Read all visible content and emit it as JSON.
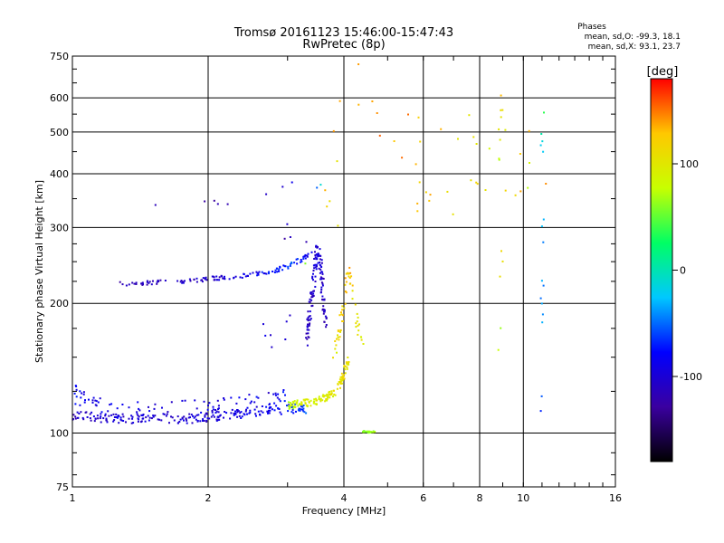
{
  "chart_data": {
    "type": "scatter",
    "title": "Tromsø 20161123 15:46:00-15:47:43",
    "subtitle": "RwPretec (8p)",
    "xlabel": "Frequency [MHz]",
    "ylabel": "Stationary phase Virtual Height [km]",
    "x_scale": "log",
    "y_scale": "log",
    "xlim": [
      1,
      16
    ],
    "ylim": [
      75,
      750
    ],
    "x_ticks": [
      1,
      2,
      4,
      6,
      8,
      10,
      16
    ],
    "x_tick_labels": [
      "1",
      "2",
      "4",
      "6",
      "8",
      "10",
      "16"
    ],
    "x_gridlines": [
      1,
      2,
      4,
      6,
      8,
      10,
      16
    ],
    "y_ticks": [
      75,
      100,
      200,
      300,
      400,
      500,
      600,
      750
    ],
    "y_tick_labels": [
      "75",
      "100",
      "200",
      "300",
      "400",
      "500",
      "600",
      "750"
    ],
    "y_gridlines": [
      100,
      200,
      300,
      400,
      500,
      600
    ],
    "grid": true,
    "legend_title": "Phases",
    "legend_lines": [
      "mean, sd,O: -99.3, 18.1",
      "mean, sd,X:  93.1, 23.7"
    ],
    "colorbar": {
      "label": "[deg]",
      "min": -180,
      "max": 180,
      "ticks": [
        100,
        0,
        -100
      ],
      "tick_labels": [
        "100",
        "0",
        "-100"
      ],
      "colors": [
        "#000000",
        "#3a00a0",
        "#0000ff",
        "#00c8ff",
        "#00ff64",
        "#c8ff00",
        "#ffc800",
        "#ff0000"
      ]
    },
    "traces": [
      {
        "x": [
          1.0,
          1.1,
          1.2,
          1.4,
          1.6,
          1.8,
          2.0,
          2.2,
          2.5,
          2.8,
          3.1,
          3.3
        ],
        "y": [
          110,
          109,
          108,
          108,
          108,
          108,
          109,
          110,
          112,
          113,
          114,
          114
        ],
        "phase": [
          -110,
          -105,
          -100,
          -100,
          -100,
          -100,
          -100,
          -95,
          -90,
          -85,
          -70,
          -60
        ],
        "spread": 0.025,
        "n": 220
      },
      {
        "x": [
          1.0,
          1.08,
          1.2,
          1.4,
          1.7,
          2.0,
          2.3,
          2.7,
          3.0
        ],
        "y": [
          125,
          118,
          114,
          113,
          114,
          114,
          116,
          118,
          120
        ],
        "phase": [
          -80,
          -85,
          -90,
          -95,
          -100,
          -95,
          -90,
          -85,
          -80
        ],
        "spread": 0.05,
        "n": 110
      },
      {
        "x": [
          1.25,
          1.4,
          1.6,
          1.8,
          2.0,
          2.2,
          2.5,
          2.8,
          3.0,
          3.2,
          3.4
        ],
        "y": [
          222,
          223,
          224,
          226,
          228,
          230,
          233,
          238,
          244,
          252,
          262
        ],
        "phase": [
          -115,
          -115,
          -110,
          -110,
          -105,
          -100,
          -90,
          -70,
          -60,
          -75,
          -90
        ],
        "spread": 0.012,
        "n": 130
      },
      {
        "x": [
          3.3,
          3.35,
          3.4,
          3.45,
          3.5,
          3.55,
          3.6,
          3.65
        ],
        "y": [
          160,
          185,
          210,
          240,
          270,
          245,
          210,
          175
        ],
        "phase": [
          -110,
          -110,
          -105,
          -100,
          -100,
          -105,
          -110,
          -110
        ],
        "spread": 0.03,
        "n": 130
      },
      {
        "x": [
          3.0,
          3.2,
          3.4,
          3.6,
          3.8,
          3.95,
          4.1
        ],
        "y": [
          116,
          117,
          118,
          120,
          124,
          132,
          150
        ],
        "phase": [
          70,
          85,
          90,
          95,
          100,
          105,
          110
        ],
        "spread": 0.02,
        "n": 140
      },
      {
        "x": [
          3.8,
          3.9,
          4.0,
          4.1,
          4.2,
          4.3,
          4.4
        ],
        "y": [
          150,
          170,
          200,
          240,
          205,
          175,
          160
        ],
        "phase": [
          100,
          110,
          120,
          130,
          110,
          100,
          95
        ],
        "spread": 0.03,
        "n": 60
      },
      {
        "x": [
          4.4,
          4.5,
          4.6,
          4.7
        ],
        "y": [
          101,
          100.5,
          100.5,
          101
        ],
        "phase": [
          60,
          60,
          60,
          60
        ],
        "spread": 0.004,
        "n": 25
      },
      {
        "x": [
          2.6,
          2.9,
          3.2,
          3.6,
          4.2,
          5.0,
          6.0,
          7.0,
          8.0,
          9.0,
          10.5
        ],
        "y": [
          140,
          150,
          340,
          300,
          580,
          450,
          420,
          400,
          460,
          480,
          360
        ],
        "phase": [
          -90,
          -110,
          -120,
          110,
          150,
          140,
          130,
          120,
          100,
          80,
          160
        ],
        "spread": 0.25,
        "n": 60
      },
      {
        "x": [
          1.4,
          1.9,
          2.2,
          2.6,
          2.9,
          3.1
        ],
        "y": [
          340,
          345,
          342,
          355,
          370,
          380
        ],
        "phase": [
          -120,
          -120,
          -120,
          -100,
          -100,
          -90
        ],
        "spread": 0.01,
        "n": 8
      },
      {
        "x": [
          8.9,
          8.9,
          8.9,
          8.9,
          11.0,
          11.0,
          11.0,
          11.0
        ],
        "y": [
          650,
          460,
          270,
          150,
          600,
          430,
          250,
          110
        ],
        "phase": [
          150,
          80,
          120,
          60,
          100,
          -40,
          -30,
          -60
        ],
        "spread": 0.04,
        "n": 30
      }
    ]
  }
}
